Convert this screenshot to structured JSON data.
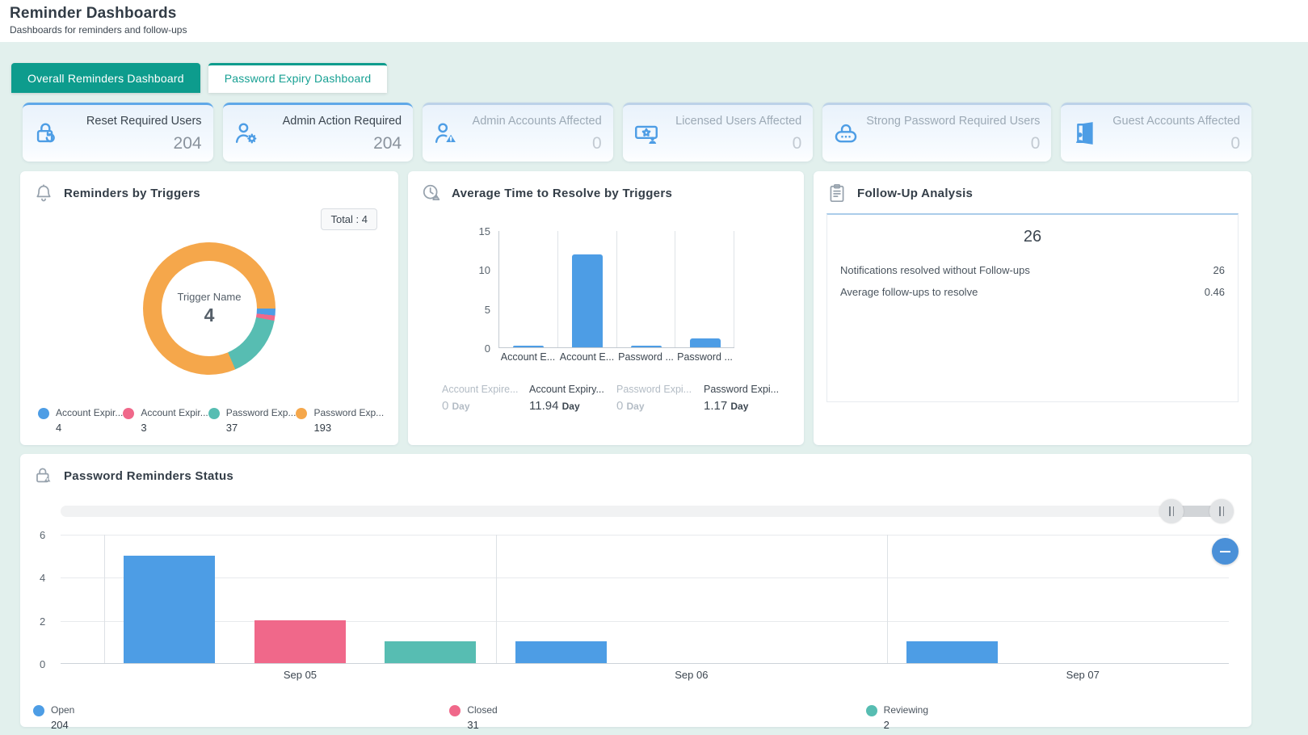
{
  "page": {
    "title": "Reminder Dashboards",
    "subtitle": "Dashboards for reminders and follow-ups"
  },
  "tabs": [
    {
      "label": "Overall Reminders Dashboard",
      "selected": false
    },
    {
      "label": "Password Expiry Dashboard",
      "selected": true
    }
  ],
  "stat_cards": [
    {
      "title": "Reset Required Users",
      "value": "204",
      "icon": "lock-reset-icon",
      "dimmed": false
    },
    {
      "title": "Admin Action Required",
      "value": "204",
      "icon": "user-gear-icon",
      "dimmed": false
    },
    {
      "title": "Admin Accounts Affected",
      "value": "0",
      "icon": "user-warning-icon",
      "dimmed": true
    },
    {
      "title": "Licensed Users Affected",
      "value": "0",
      "icon": "license-user-icon",
      "dimmed": true
    },
    {
      "title": "Strong Password Required Users",
      "value": "0",
      "icon": "password-lock-icon",
      "dimmed": true,
      "wide": true
    },
    {
      "title": "Guest Accounts Affected",
      "value": "0",
      "icon": "guest-door-icon",
      "dimmed": true
    }
  ],
  "follow_up": {
    "title": "Follow-Up Analysis",
    "headline_value": "26",
    "rows": [
      {
        "label": "Notifications resolved without Follow-ups",
        "value": "26"
      },
      {
        "label": "Average follow-ups to resolve",
        "value": "0.46"
      }
    ]
  },
  "chart_data": [
    {
      "id": "reminders_by_triggers",
      "type": "pie",
      "title": "Reminders by Triggers",
      "total_badge": "Total : 4",
      "center_label": "Trigger Name",
      "center_value": "4",
      "start_angle_deg": 90,
      "segments": [
        {
          "label": "Account Expir...",
          "value": 4,
          "color": "#4d9de5"
        },
        {
          "label": "Account Expir...",
          "value": 3,
          "color": "#f0688a"
        },
        {
          "label": "Password Exp...",
          "value": 37,
          "color": "#57bdb2"
        },
        {
          "label": "Password Exp...",
          "value": 193,
          "color": "#f5a74b"
        }
      ]
    },
    {
      "id": "avg_time_to_resolve",
      "type": "bar",
      "title": "Average Time to Resolve by Triggers",
      "categories": [
        "Account E...",
        "Account E...",
        "Password ...",
        "Password ..."
      ],
      "values": [
        0,
        11.94,
        0,
        1.17
      ],
      "bar_color": "#4d9de5",
      "ylim": [
        0,
        15
      ],
      "yticks": [
        0,
        5,
        10,
        15
      ],
      "grid": "vertical",
      "stats": [
        {
          "label": "Account Expire...",
          "value": "0",
          "unit": "Day",
          "dimmed": true
        },
        {
          "label": "Account Expiry...",
          "value": "11.94",
          "unit": "Day",
          "dimmed": false
        },
        {
          "label": "Password Expi...",
          "value": "0",
          "unit": "Day",
          "dimmed": true
        },
        {
          "label": "Password Expi...",
          "value": "1.17",
          "unit": "Day",
          "dimmed": false
        }
      ]
    },
    {
      "id": "password_reminders_status",
      "type": "bar",
      "title": "Password Reminders Status",
      "categories": [
        "Sep 05",
        "Sep 06",
        "Sep 07"
      ],
      "series": [
        {
          "name": "Open",
          "total": "204",
          "color": "#4d9de5",
          "values": [
            5,
            1,
            1
          ]
        },
        {
          "name": "Closed",
          "total": "31",
          "color": "#f0688a",
          "values": [
            2,
            0,
            0
          ]
        },
        {
          "name": "Reviewing",
          "total": "2",
          "color": "#57bdb2",
          "values": [
            1,
            0,
            0
          ]
        }
      ],
      "ylim": [
        0,
        6
      ],
      "yticks": [
        0,
        2,
        4,
        6
      ],
      "grid": "both",
      "legend_position": "bottom"
    }
  ],
  "colors": {
    "accent_teal": "#0d9c8d",
    "accent_blue": "#4d9de5",
    "pink": "#f0688a",
    "chart_teal": "#57bdb2",
    "orange": "#f5a74b",
    "page_bg": "#e2f0ed"
  }
}
